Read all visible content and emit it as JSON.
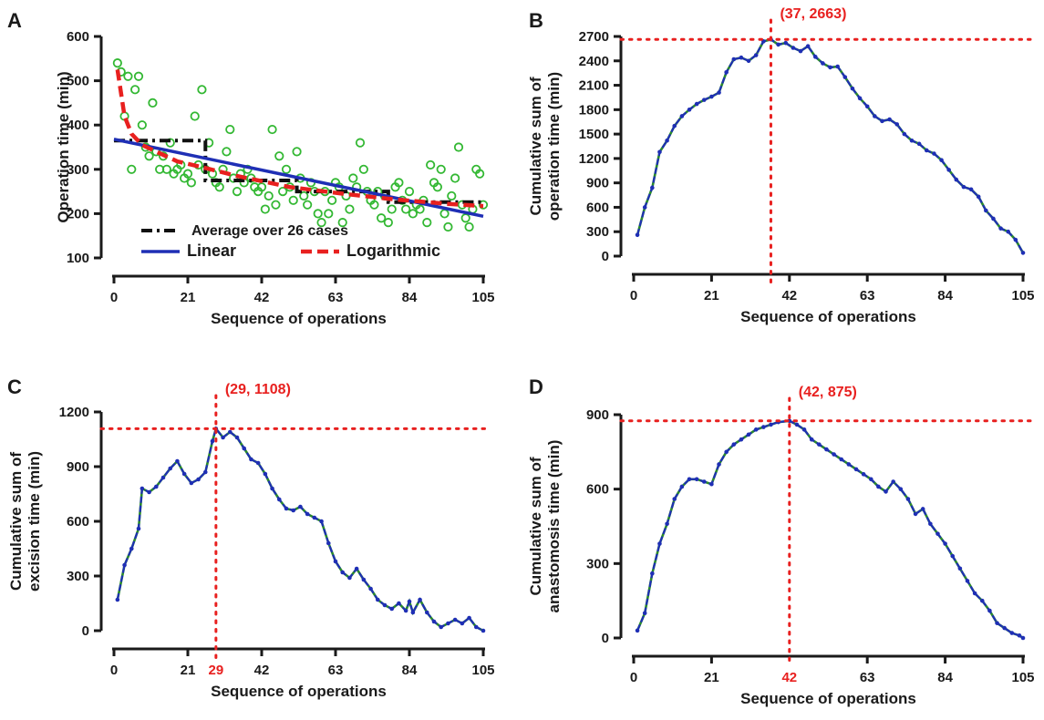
{
  "colors": {
    "axis": "#1a1a1a",
    "scatter_points": "#33b833",
    "average_line": "#111111",
    "linear_line": "#1f2fb5",
    "log_line": "#e8201f",
    "cusum_line": "#1f2fb5",
    "cusum_segment": "#2a8a2a",
    "annotation": "#e8201f"
  },
  "chart_data": [
    {
      "panel": "A",
      "type": "scatter",
      "xlabel": "Sequence of operations",
      "ylabel": "Operation time (min)",
      "xlim": [
        0,
        105
      ],
      "ylim": [
        100,
        600
      ],
      "xticks": [
        "0",
        "21",
        "42",
        "63",
        "84",
        "105"
      ],
      "yticks": [
        "100",
        "200",
        "300",
        "400",
        "500",
        "600"
      ],
      "legend": [
        {
          "label": "Average over 26 cases",
          "style": "dash-dot"
        },
        {
          "label": "Linear",
          "style": "solid"
        },
        {
          "label": "Logarithmic",
          "style": "dashed"
        }
      ],
      "points": [
        [
          1,
          540
        ],
        [
          2,
          520
        ],
        [
          3,
          420
        ],
        [
          4,
          510
        ],
        [
          5,
          300
        ],
        [
          6,
          480
        ],
        [
          7,
          510
        ],
        [
          8,
          400
        ],
        [
          9,
          350
        ],
        [
          10,
          330
        ],
        [
          11,
          450
        ],
        [
          12,
          340
        ],
        [
          13,
          300
        ],
        [
          14,
          330
        ],
        [
          15,
          300
        ],
        [
          16,
          360
        ],
        [
          17,
          290
        ],
        [
          18,
          300
        ],
        [
          19,
          310
        ],
        [
          20,
          280
        ],
        [
          21,
          290
        ],
        [
          22,
          270
        ],
        [
          23,
          420
        ],
        [
          24,
          310
        ],
        [
          25,
          480
        ],
        [
          26,
          300
        ],
        [
          27,
          360
        ],
        [
          28,
          290
        ],
        [
          29,
          270
        ],
        [
          30,
          260
        ],
        [
          31,
          300
        ],
        [
          32,
          340
        ],
        [
          33,
          390
        ],
        [
          34,
          280
        ],
        [
          35,
          250
        ],
        [
          36,
          290
        ],
        [
          37,
          270
        ],
        [
          38,
          300
        ],
        [
          39,
          280
        ],
        [
          40,
          260
        ],
        [
          41,
          250
        ],
        [
          42,
          260
        ],
        [
          43,
          210
        ],
        [
          44,
          240
        ],
        [
          45,
          390
        ],
        [
          46,
          220
        ],
        [
          47,
          330
        ],
        [
          48,
          250
        ],
        [
          49,
          300
        ],
        [
          50,
          260
        ],
        [
          51,
          230
        ],
        [
          52,
          340
        ],
        [
          53,
          280
        ],
        [
          54,
          240
        ],
        [
          55,
          220
        ],
        [
          56,
          270
        ],
        [
          57,
          250
        ],
        [
          58,
          200
        ],
        [
          59,
          180
        ],
        [
          60,
          250
        ],
        [
          61,
          200
        ],
        [
          62,
          230
        ],
        [
          63,
          270
        ],
        [
          64,
          260
        ],
        [
          65,
          180
        ],
        [
          66,
          240
        ],
        [
          67,
          210
        ],
        [
          68,
          280
        ],
        [
          69,
          260
        ],
        [
          70,
          360
        ],
        [
          71,
          300
        ],
        [
          72,
          250
        ],
        [
          73,
          230
        ],
        [
          74,
          220
        ],
        [
          75,
          250
        ],
        [
          76,
          190
        ],
        [
          77,
          240
        ],
        [
          78,
          180
        ],
        [
          79,
          210
        ],
        [
          80,
          260
        ],
        [
          81,
          270
        ],
        [
          82,
          230
        ],
        [
          83,
          210
        ],
        [
          84,
          250
        ],
        [
          85,
          200
        ],
        [
          86,
          220
        ],
        [
          87,
          210
        ],
        [
          88,
          230
        ],
        [
          89,
          180
        ],
        [
          90,
          310
        ],
        [
          91,
          270
        ],
        [
          92,
          260
        ],
        [
          93,
          300
        ],
        [
          94,
          200
        ],
        [
          95,
          170
        ],
        [
          96,
          240
        ],
        [
          97,
          280
        ],
        [
          98,
          350
        ],
        [
          99,
          220
        ],
        [
          100,
          190
        ],
        [
          101,
          170
        ],
        [
          102,
          210
        ],
        [
          103,
          300
        ],
        [
          104,
          290
        ],
        [
          105,
          220
        ]
      ],
      "series": [
        {
          "style": "dash-dot",
          "x": [
            0,
            26,
            26,
            52,
            52,
            78,
            78,
            105
          ],
          "y": [
            365,
            365,
            275,
            275,
            250,
            250,
            226,
            226
          ]
        },
        {
          "style": "solid",
          "x": [
            0,
            105
          ],
          "y": [
            368,
            194
          ]
        },
        {
          "style": "dashed",
          "x": [
            1,
            3,
            5,
            8,
            12,
            18,
            25,
            35,
            50,
            65,
            80,
            95,
            105
          ],
          "y": [
            525,
            420,
            380,
            355,
            340,
            318,
            305,
            285,
            260,
            245,
            232,
            222,
            217
          ]
        }
      ]
    },
    {
      "panel": "B",
      "type": "line",
      "xlabel": "Sequence of operations",
      "ylabel": "Cumulative sum of operation time (min)",
      "xlim": [
        0,
        105
      ],
      "ylim": [
        0,
        2700
      ],
      "xticks": [
        "0",
        "21",
        "42",
        "63",
        "84",
        "105"
      ],
      "yticks": [
        "0",
        "300",
        "600",
        "900",
        "1200",
        "1500",
        "1800",
        "2100",
        "2400",
        "2700"
      ],
      "peak": {
        "x": 37,
        "y": 2663,
        "x_label": "37",
        "annotation": "(37, 2663)"
      },
      "x": [
        1,
        3,
        5,
        7,
        9,
        11,
        13,
        15,
        17,
        19,
        21,
        23,
        25,
        27,
        29,
        31,
        33,
        35,
        37,
        39,
        41,
        43,
        45,
        47,
        49,
        51,
        53,
        55,
        57,
        59,
        61,
        63,
        65,
        67,
        69,
        71,
        73,
        75,
        77,
        79,
        81,
        83,
        85,
        87,
        89,
        91,
        93,
        95,
        97,
        99,
        101,
        103,
        105
      ],
      "y": [
        260,
        600,
        840,
        1280,
        1420,
        1600,
        1720,
        1800,
        1870,
        1920,
        1960,
        2010,
        2260,
        2420,
        2440,
        2400,
        2470,
        2640,
        2663,
        2600,
        2620,
        2560,
        2520,
        2580,
        2450,
        2370,
        2320,
        2330,
        2200,
        2060,
        1940,
        1840,
        1720,
        1660,
        1680,
        1620,
        1500,
        1420,
        1380,
        1300,
        1260,
        1180,
        1060,
        940,
        850,
        820,
        730,
        560,
        460,
        340,
        300,
        200,
        40
      ]
    },
    {
      "panel": "C",
      "type": "line",
      "xlabel": "Sequence of operations",
      "ylabel": "Cumulative sum of excision time (min)",
      "xlim": [
        0,
        105
      ],
      "ylim": [
        0,
        1200
      ],
      "xticks": [
        "0",
        "21",
        "29",
        "42",
        "63",
        "84",
        "105"
      ],
      "yticks": [
        "0",
        "300",
        "600",
        "900",
        "1200"
      ],
      "peak": {
        "x": 29,
        "y": 1108,
        "x_label": "29",
        "annotation": "(29, 1108)"
      },
      "x": [
        1,
        3,
        5,
        7,
        8,
        10,
        12,
        14,
        16,
        18,
        20,
        22,
        24,
        26,
        28,
        29,
        31,
        33,
        35,
        37,
        39,
        41,
        43,
        45,
        47,
        49,
        51,
        53,
        55,
        57,
        59,
        61,
        63,
        65,
        67,
        69,
        71,
        73,
        75,
        77,
        79,
        81,
        83,
        84,
        85,
        87,
        89,
        91,
        93,
        95,
        97,
        99,
        101,
        103,
        105
      ],
      "y": [
        170,
        360,
        450,
        560,
        780,
        760,
        790,
        840,
        890,
        930,
        860,
        810,
        830,
        870,
        1040,
        1108,
        1060,
        1090,
        1060,
        1000,
        940,
        920,
        860,
        780,
        720,
        670,
        660,
        680,
        640,
        620,
        600,
        480,
        380,
        320,
        290,
        340,
        280,
        230,
        170,
        140,
        120,
        150,
        110,
        160,
        100,
        170,
        100,
        50,
        20,
        40,
        60,
        40,
        70,
        20,
        0
      ]
    },
    {
      "panel": "D",
      "type": "line",
      "xlabel": "Sequence of operations",
      "ylabel": "Cumulative sum of anastomosis time (min)",
      "xlim": [
        0,
        105
      ],
      "ylim": [
        0,
        900
      ],
      "xticks": [
        "0",
        "21",
        "42",
        "63",
        "84",
        "105"
      ],
      "yticks": [
        "0",
        "300",
        "600",
        "900"
      ],
      "peak": {
        "x": 42,
        "y": 875,
        "x_label": "42",
        "annotation": "(42, 875)"
      },
      "x": [
        1,
        3,
        5,
        7,
        9,
        11,
        13,
        15,
        17,
        19,
        21,
        23,
        25,
        27,
        29,
        31,
        33,
        35,
        37,
        39,
        42,
        44,
        46,
        48,
        50,
        52,
        54,
        56,
        58,
        60,
        62,
        64,
        66,
        68,
        70,
        72,
        74,
        76,
        78,
        80,
        82,
        84,
        86,
        88,
        90,
        92,
        94,
        96,
        98,
        100,
        102,
        104,
        105
      ],
      "y": [
        30,
        100,
        260,
        380,
        460,
        560,
        610,
        640,
        640,
        630,
        620,
        700,
        750,
        780,
        800,
        820,
        840,
        850,
        860,
        870,
        875,
        860,
        840,
        800,
        780,
        760,
        740,
        720,
        700,
        680,
        660,
        640,
        610,
        590,
        630,
        600,
        560,
        500,
        520,
        460,
        420,
        380,
        330,
        280,
        230,
        180,
        150,
        110,
        60,
        40,
        20,
        10,
        0
      ]
    }
  ]
}
